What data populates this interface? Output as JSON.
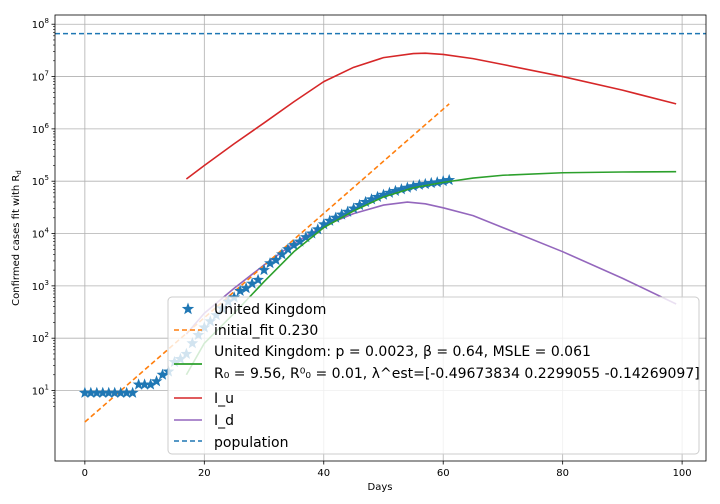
{
  "chart_data": {
    "type": "line",
    "title": "",
    "xlabel": "Days",
    "ylabel": "Confirmed cases fit with R_d",
    "yscale": "log",
    "xlim": [
      -5,
      104
    ],
    "ylim": [
      0.45,
      150000000
    ],
    "xticks": [
      0,
      20,
      40,
      60,
      80,
      100
    ],
    "xtick_labels": [
      "0",
      "20",
      "40",
      "60",
      "80",
      "100"
    ],
    "yticks": [
      10,
      100,
      1000,
      10000,
      100000,
      1000000,
      10000000,
      100000000
    ],
    "ytick_labels": [
      {
        "base": "10",
        "exp": "1"
      },
      {
        "base": "10",
        "exp": "2"
      },
      {
        "base": "10",
        "exp": "3"
      },
      {
        "base": "10",
        "exp": "4"
      },
      {
        "base": "10",
        "exp": "5"
      },
      {
        "base": "10",
        "exp": "6"
      },
      {
        "base": "10",
        "exp": "7"
      },
      {
        "base": "10",
        "exp": "8"
      }
    ],
    "grid": true,
    "legend_position": "lower-right",
    "series": [
      {
        "name": "United Kingdom",
        "kind": "scatter",
        "marker": "star",
        "color": "#1f77b4",
        "x": [
          0,
          1,
          2,
          3,
          4,
          5,
          6,
          7,
          8,
          9,
          10,
          11,
          12,
          13,
          14,
          15,
          16,
          17,
          18,
          19,
          20,
          21,
          22,
          23,
          24,
          25,
          26,
          27,
          28,
          29,
          30,
          31,
          32,
          33,
          34,
          35,
          36,
          37,
          38,
          39,
          40,
          41,
          42,
          43,
          44,
          45,
          46,
          47,
          48,
          49,
          50,
          51,
          52,
          53,
          54,
          55,
          56,
          57,
          58,
          59,
          60,
          61
        ],
        "y": [
          9,
          9,
          9,
          9,
          9,
          9,
          9,
          9,
          9,
          13,
          13,
          13,
          15,
          20,
          23,
          35,
          40,
          50,
          80,
          115,
          160,
          210,
          275,
          370,
          500,
          600,
          800,
          900,
          1100,
          1300,
          2000,
          2700,
          3100,
          4000,
          5000,
          6000,
          7000,
          8500,
          10000,
          12000,
          15000,
          17500,
          20000,
          23000,
          26000,
          30000,
          35000,
          40000,
          45000,
          50000,
          55000,
          60000,
          65000,
          70000,
          75000,
          80000,
          85000,
          88000,
          92000,
          95000,
          100000,
          105000
        ]
      },
      {
        "name": "initial_fit 0.230",
        "kind": "line",
        "dash": "dashed",
        "color": "#ff7f0e",
        "x": [
          0,
          61
        ],
        "y": [
          2.5,
          3000000
        ]
      },
      {
        "name": "United Kingdom: p = 0.0023,  β =  0.64, MSLE = 0.061",
        "name_line2": " R₀ = 9.56, R⁰₀ = 0.01, λ^est=[-0.49673834  0.2299055  -0.14269097]",
        "kind": "line",
        "color": "#2ca02c",
        "x": [
          17,
          20,
          25,
          30,
          35,
          40,
          45,
          50,
          55,
          60,
          65,
          70,
          80,
          90,
          99
        ],
        "y": [
          20,
          80,
          300,
          1200,
          4500,
          13000,
          27000,
          50000,
          75000,
          95000,
          115000,
          130000,
          145000,
          150000,
          152000
        ]
      },
      {
        "name": "I_u",
        "kind": "line",
        "color": "#d62728",
        "x": [
          17,
          20,
          25,
          30,
          35,
          40,
          45,
          50,
          55,
          57,
          60,
          65,
          70,
          80,
          90,
          99
        ],
        "y": [
          110000,
          200000,
          520000,
          1300000,
          3300000,
          8000000,
          15000000,
          23000000,
          27500000,
          28000000,
          26500000,
          22000000,
          17000000,
          10000000,
          5500000,
          3000000
        ]
      },
      {
        "name": "I_d",
        "kind": "line",
        "color": "#9467bd",
        "x": [
          17,
          20,
          25,
          30,
          35,
          40,
          45,
          50,
          54,
          57,
          60,
          65,
          70,
          80,
          90,
          99
        ],
        "y": [
          120,
          300,
          900,
          2500,
          6500,
          14000,
          24000,
          35000,
          40000,
          37000,
          31000,
          22000,
          13000,
          4500,
          1400,
          450
        ]
      },
      {
        "name": "population",
        "kind": "hline",
        "dash": "dashed",
        "color": "#1f77b4",
        "y": 66000000
      }
    ]
  }
}
